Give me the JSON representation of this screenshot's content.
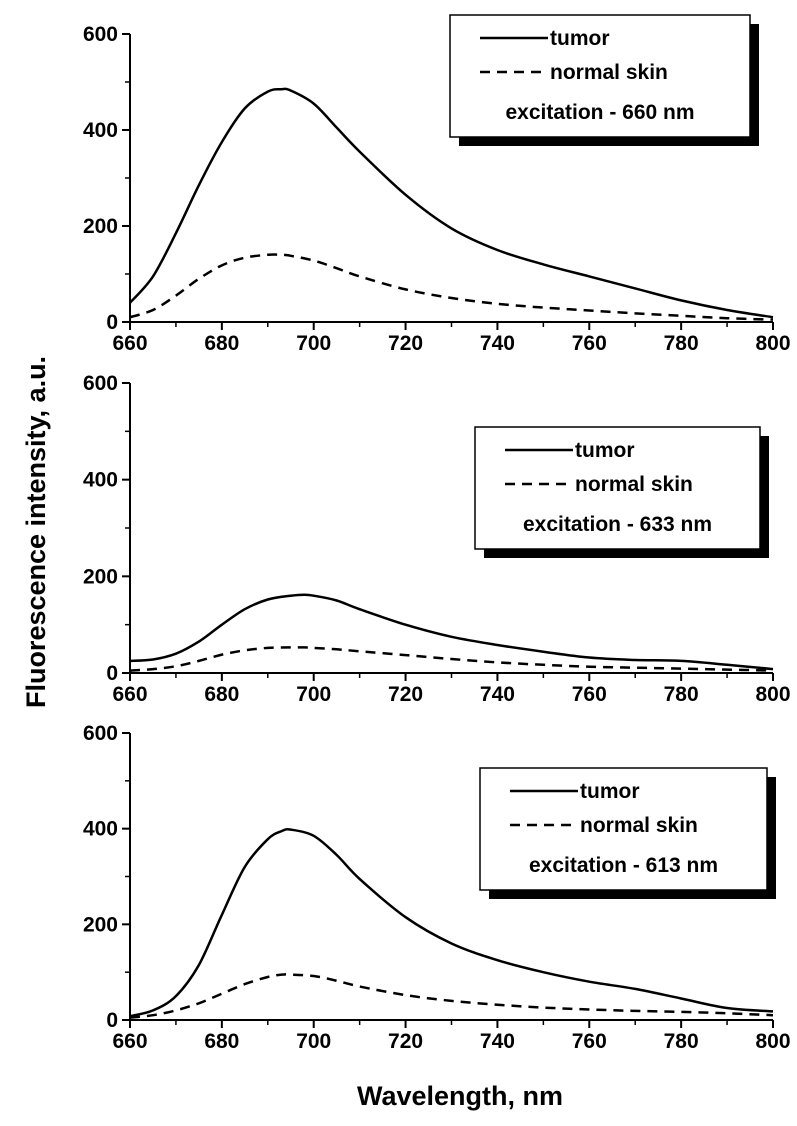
{
  "figure": {
    "xlabel": "Wavelength, nm",
    "ylabel": "Fluorescence intensity, a.u.",
    "xlim": [
      660,
      800
    ],
    "ylim": [
      0,
      600
    ],
    "x_ticks": [
      660,
      680,
      700,
      720,
      740,
      760,
      780,
      800
    ],
    "y_ticks": [
      0,
      200,
      400,
      600
    ],
    "colors": {
      "line": "#000000",
      "background": "#ffffff",
      "legend_shadow": "#000000"
    }
  },
  "chart_data": [
    {
      "type": "line",
      "legend_placement": "top-right",
      "xlabel": "Wavelength, nm",
      "ylabel": "Fluorescence intensity, a.u.",
      "xlim": [
        660,
        800
      ],
      "ylim": [
        0,
        600
      ],
      "x": [
        660,
        665,
        670,
        675,
        680,
        685,
        690,
        693,
        695,
        700,
        705,
        710,
        720,
        730,
        740,
        750,
        760,
        770,
        780,
        790,
        800
      ],
      "series": [
        {
          "name": "tumor",
          "style": "solid",
          "values": [
            40,
            95,
            185,
            285,
            375,
            445,
            480,
            485,
            482,
            455,
            405,
            355,
            265,
            195,
            150,
            120,
            95,
            70,
            45,
            25,
            10
          ]
        },
        {
          "name": "normal skin",
          "style": "dashed",
          "values": [
            10,
            25,
            55,
            90,
            118,
            134,
            140,
            140,
            138,
            128,
            112,
            95,
            68,
            50,
            38,
            30,
            24,
            18,
            13,
            8,
            5
          ]
        }
      ],
      "annotation": "excitation - 660 nm"
    },
    {
      "type": "line",
      "legend_placement": "top-right",
      "xlabel": "Wavelength, nm",
      "ylabel": "Fluorescence intensity, a.u.",
      "xlim": [
        660,
        800
      ],
      "ylim": [
        0,
        600
      ],
      "x": [
        660,
        665,
        670,
        675,
        680,
        685,
        690,
        695,
        698,
        700,
        705,
        710,
        720,
        730,
        740,
        750,
        760,
        770,
        780,
        790,
        800
      ],
      "series": [
        {
          "name": "tumor",
          "style": "solid",
          "values": [
            25,
            28,
            40,
            65,
            100,
            132,
            152,
            160,
            162,
            160,
            150,
            132,
            100,
            75,
            58,
            44,
            32,
            27,
            25,
            17,
            8
          ]
        },
        {
          "name": "normal skin",
          "style": "dashed",
          "values": [
            5,
            8,
            14,
            25,
            38,
            47,
            52,
            53,
            53,
            52,
            49,
            45,
            37,
            29,
            22,
            17,
            13,
            11,
            9,
            7,
            5
          ]
        }
      ],
      "annotation": "excitation - 633 nm"
    },
    {
      "type": "line",
      "legend_placement": "top-right",
      "xlabel": "Wavelength, nm",
      "ylabel": "Fluorescence intensity, a.u.",
      "xlim": [
        660,
        800
      ],
      "ylim": [
        0,
        600
      ],
      "x": [
        660,
        665,
        670,
        675,
        680,
        685,
        690,
        693,
        695,
        700,
        705,
        710,
        720,
        730,
        740,
        750,
        760,
        770,
        780,
        790,
        800
      ],
      "series": [
        {
          "name": "tumor",
          "style": "solid",
          "values": [
            8,
            20,
            50,
            115,
            220,
            320,
            378,
            395,
            398,
            385,
            345,
            295,
            215,
            160,
            125,
            100,
            80,
            65,
            45,
            25,
            18
          ]
        },
        {
          "name": "normal skin",
          "style": "dashed",
          "values": [
            5,
            10,
            20,
            35,
            55,
            75,
            90,
            95,
            95,
            92,
            82,
            70,
            52,
            40,
            32,
            26,
            22,
            19,
            17,
            14,
            10
          ]
        }
      ],
      "annotation": "excitation - 613 nm"
    }
  ]
}
